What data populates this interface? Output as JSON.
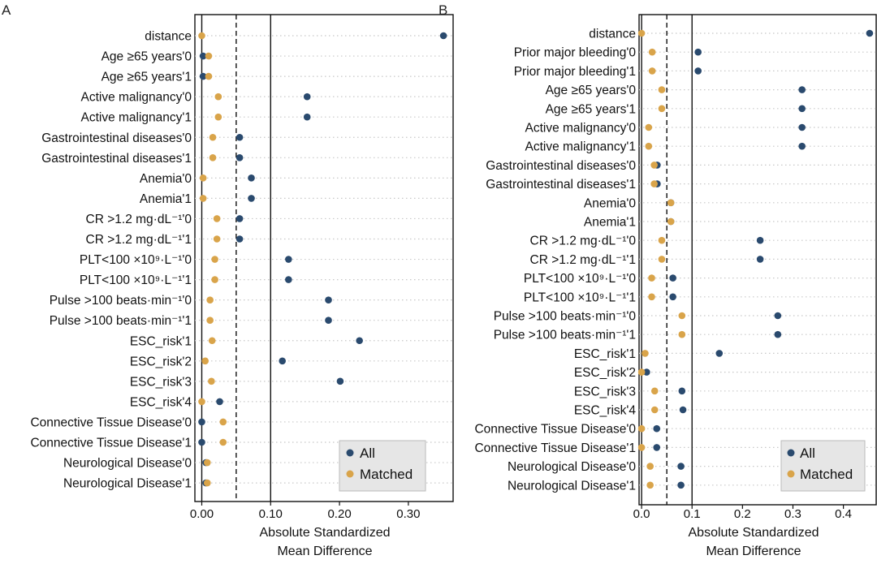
{
  "colors": {
    "all": "#2a4a6e",
    "matched": "#d9a44a",
    "grid": "#c8c8c8",
    "legend_bg": "#e6e6e6"
  },
  "chart_data": [
    {
      "type": "scatter",
      "panel": "A",
      "xlabel_lines": [
        "Absolute Standardized",
        "Mean Difference"
      ],
      "xlim": [
        -0.01,
        0.365
      ],
      "xticks": [
        0.0,
        0.1,
        0.2,
        0.3
      ],
      "xtick_labels": [
        "0.00",
        "0.10",
        "0.20",
        "0.30"
      ],
      "vlines": {
        "solid": [
          0,
          0.1
        ],
        "dashed": [
          0.05
        ]
      },
      "legend": {
        "position": "bottom-right",
        "entries": [
          "All",
          "Matched"
        ]
      },
      "categories": [
        "distance",
        "Age ≥65 years'0",
        "Age ≥65 years'1",
        "Active malignancy'0",
        "Active malignancy'1",
        "Gastrointestinal diseases'0",
        "Gastrointestinal diseases'1",
        "Anemia'0",
        "Anemia'1",
        "CR >1.2 mg·dL⁻¹'0",
        "CR >1.2 mg·dL⁻¹'1",
        "PLT<100 ×10⁹·L⁻¹'0",
        "PLT<100 ×10⁹·L⁻¹'1",
        "Pulse >100 beats·min⁻¹'0",
        "Pulse >100 beats·min⁻¹'1",
        "ESC_risk'1",
        "ESC_risk'2",
        "ESC_risk'3",
        "ESC_risk'4",
        "Connective Tissue Disease'0",
        "Connective Tissue Disease'1",
        "Neurological Disease'0",
        "Neurological Disease'1"
      ],
      "series": [
        {
          "name": "All",
          "values": [
            0.351,
            0.002,
            0.002,
            0.153,
            0.153,
            0.055,
            0.055,
            0.072,
            0.072,
            0.055,
            0.055,
            0.126,
            0.126,
            0.184,
            0.184,
            0.229,
            0.117,
            0.201,
            0.026,
            0.0,
            0.0,
            0.006,
            0.006
          ]
        },
        {
          "name": "Matched",
          "values": [
            0.0,
            0.01,
            0.01,
            0.024,
            0.024,
            0.016,
            0.016,
            0.002,
            0.002,
            0.022,
            0.022,
            0.019,
            0.019,
            0.012,
            0.012,
            0.015,
            0.005,
            0.014,
            0.0,
            0.031,
            0.031,
            0.008,
            0.008
          ]
        }
      ]
    },
    {
      "type": "scatter",
      "panel": "B",
      "xlabel_lines": [
        "Absolute Standardized",
        "Mean Difference"
      ],
      "xlim": [
        -0.005,
        0.465
      ],
      "xticks": [
        0.0,
        0.1,
        0.2,
        0.3,
        0.4
      ],
      "xtick_labels": [
        "0.0",
        "0.1",
        "0.2",
        "0.3",
        "0.4"
      ],
      "vlines": {
        "solid": [
          0,
          0.1
        ],
        "dashed": [
          0.05
        ]
      },
      "legend": {
        "position": "bottom-right",
        "entries": [
          "All",
          "Matched"
        ]
      },
      "categories": [
        "distance",
        "Prior major bleeding'0",
        "Prior major bleeding'1",
        "Age ≥65 years'0",
        "Age ≥65 years'1",
        "Active malignancy'0",
        "Active malignancy'1",
        "Gastrointestinal diseases'0",
        "Gastrointestinal diseases'1",
        "Anemia'0",
        "Anemia'1",
        "CR >1.2 mg·dL⁻¹'0",
        "CR >1.2 mg·dL⁻¹'1",
        "PLT<100 ×10⁹·L⁻¹'0",
        "PLT<100 ×10⁹·L⁻¹'1",
        "Pulse >100 beats·min⁻¹'0",
        "Pulse >100 beats·min⁻¹'1",
        "ESC_risk'1",
        "ESC_risk'2",
        "ESC_risk'3",
        "ESC_risk'4",
        "Connective Tissue Disease'0",
        "Connective Tissue Disease'1",
        "Neurological Disease'0",
        "Neurological Disease'1"
      ],
      "series": [
        {
          "name": "All",
          "values": [
            0.452,
            0.112,
            0.112,
            0.318,
            0.318,
            0.318,
            0.318,
            0.031,
            0.031,
            0.058,
            0.058,
            0.235,
            0.235,
            0.062,
            0.062,
            0.27,
            0.27,
            0.154,
            0.01,
            0.08,
            0.082,
            0.03,
            0.03,
            0.078,
            0.078
          ]
        },
        {
          "name": "Matched",
          "values": [
            0.0,
            0.021,
            0.021,
            0.04,
            0.04,
            0.014,
            0.014,
            0.025,
            0.025,
            0.058,
            0.058,
            0.04,
            0.04,
            0.02,
            0.02,
            0.08,
            0.08,
            0.007,
            0.0,
            0.026,
            0.026,
            0.0,
            0.0,
            0.017,
            0.017
          ]
        }
      ]
    }
  ]
}
